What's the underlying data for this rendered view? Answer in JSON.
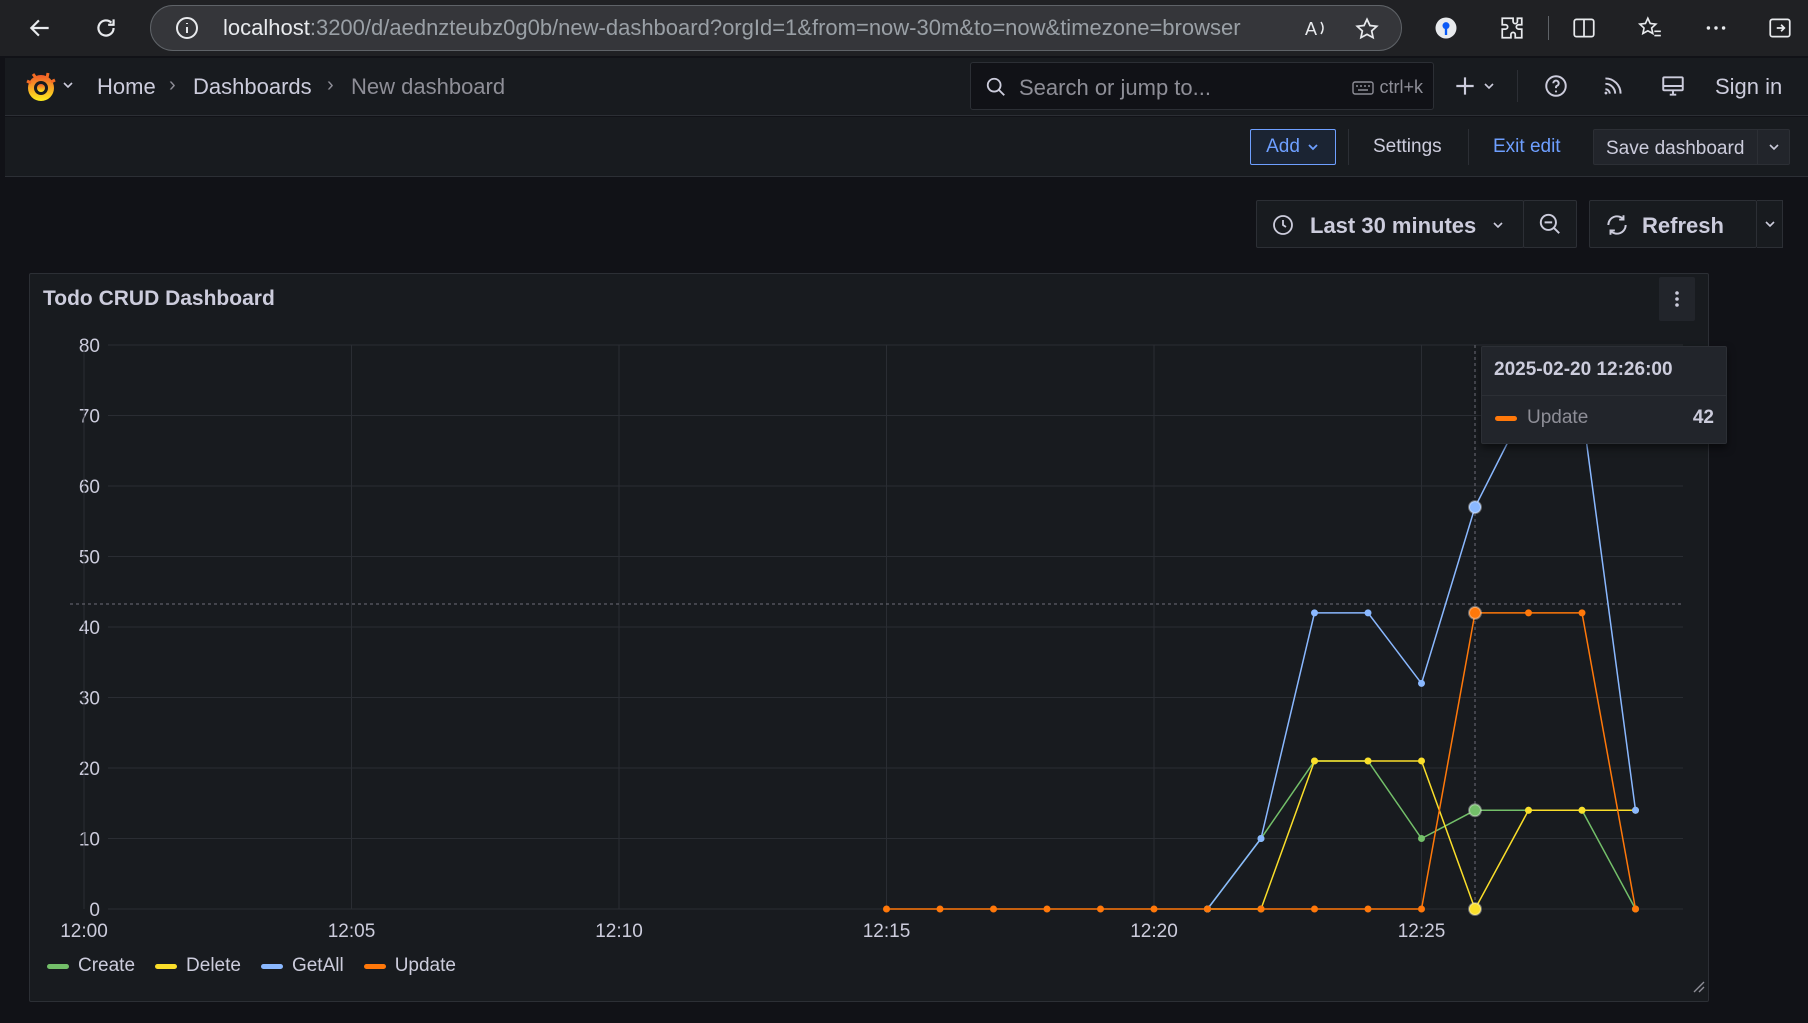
{
  "browser": {
    "url_host": "localhost",
    "url_rest": ":3200/d/aednzteubz0g0b/new-dashboard?orgId=1&from=now-30m&to=now&timezone=browser"
  },
  "topnav": {
    "breadcrumbs": [
      "Home",
      "Dashboards",
      "New dashboard"
    ],
    "search_placeholder": "Search or jump to...",
    "search_shortcut": "ctrl+k",
    "sign_in": "Sign in"
  },
  "toolbar": {
    "add_label": "Add",
    "settings_label": "Settings",
    "exit_edit_label": "Exit edit",
    "save_label": "Save dashboard"
  },
  "time_controls": {
    "range_label": "Last 30 minutes",
    "refresh_label": "Refresh"
  },
  "panel": {
    "title": "Todo CRUD Dashboard"
  },
  "tooltip": {
    "time": "2025-02-20 12:26:00",
    "series": "Update",
    "value": "42"
  },
  "colors": {
    "Create": "#73bf69",
    "Delete": "#fade2a",
    "GetAll": "#8ab8ff",
    "Update": "#ff780a"
  },
  "chart_data": {
    "type": "line",
    "title": "Todo CRUD Dashboard",
    "xlabel": "",
    "ylabel": "",
    "ylim": [
      0,
      80
    ],
    "yticks": [
      0,
      10,
      20,
      30,
      40,
      50,
      60,
      70,
      80
    ],
    "xticks": [
      "12:00",
      "12:05",
      "12:10",
      "12:15",
      "12:20",
      "12:25"
    ],
    "x": [
      "12:15",
      "12:16",
      "12:17",
      "12:18",
      "12:19",
      "12:20",
      "12:21",
      "12:22",
      "12:23",
      "12:24",
      "12:25",
      "12:26",
      "12:27",
      "12:28",
      "12:29"
    ],
    "legend_position": "bottom-left",
    "grid": true,
    "series": [
      {
        "name": "Create",
        "values": [
          null,
          null,
          null,
          null,
          null,
          null,
          0,
          10,
          21,
          21,
          10,
          14,
          14,
          14,
          0
        ]
      },
      {
        "name": "Delete",
        "values": [
          null,
          null,
          null,
          null,
          null,
          null,
          0,
          0,
          21,
          21,
          21,
          0,
          14,
          14,
          14
        ]
      },
      {
        "name": "GetAll",
        "values": [
          null,
          null,
          null,
          null,
          null,
          null,
          0,
          10,
          42,
          42,
          32,
          57,
          72,
          71,
          14
        ]
      },
      {
        "name": "Update",
        "values": [
          0,
          0,
          0,
          0,
          0,
          0,
          0,
          0,
          0,
          0,
          0,
          42,
          42,
          42,
          0
        ]
      }
    ]
  }
}
